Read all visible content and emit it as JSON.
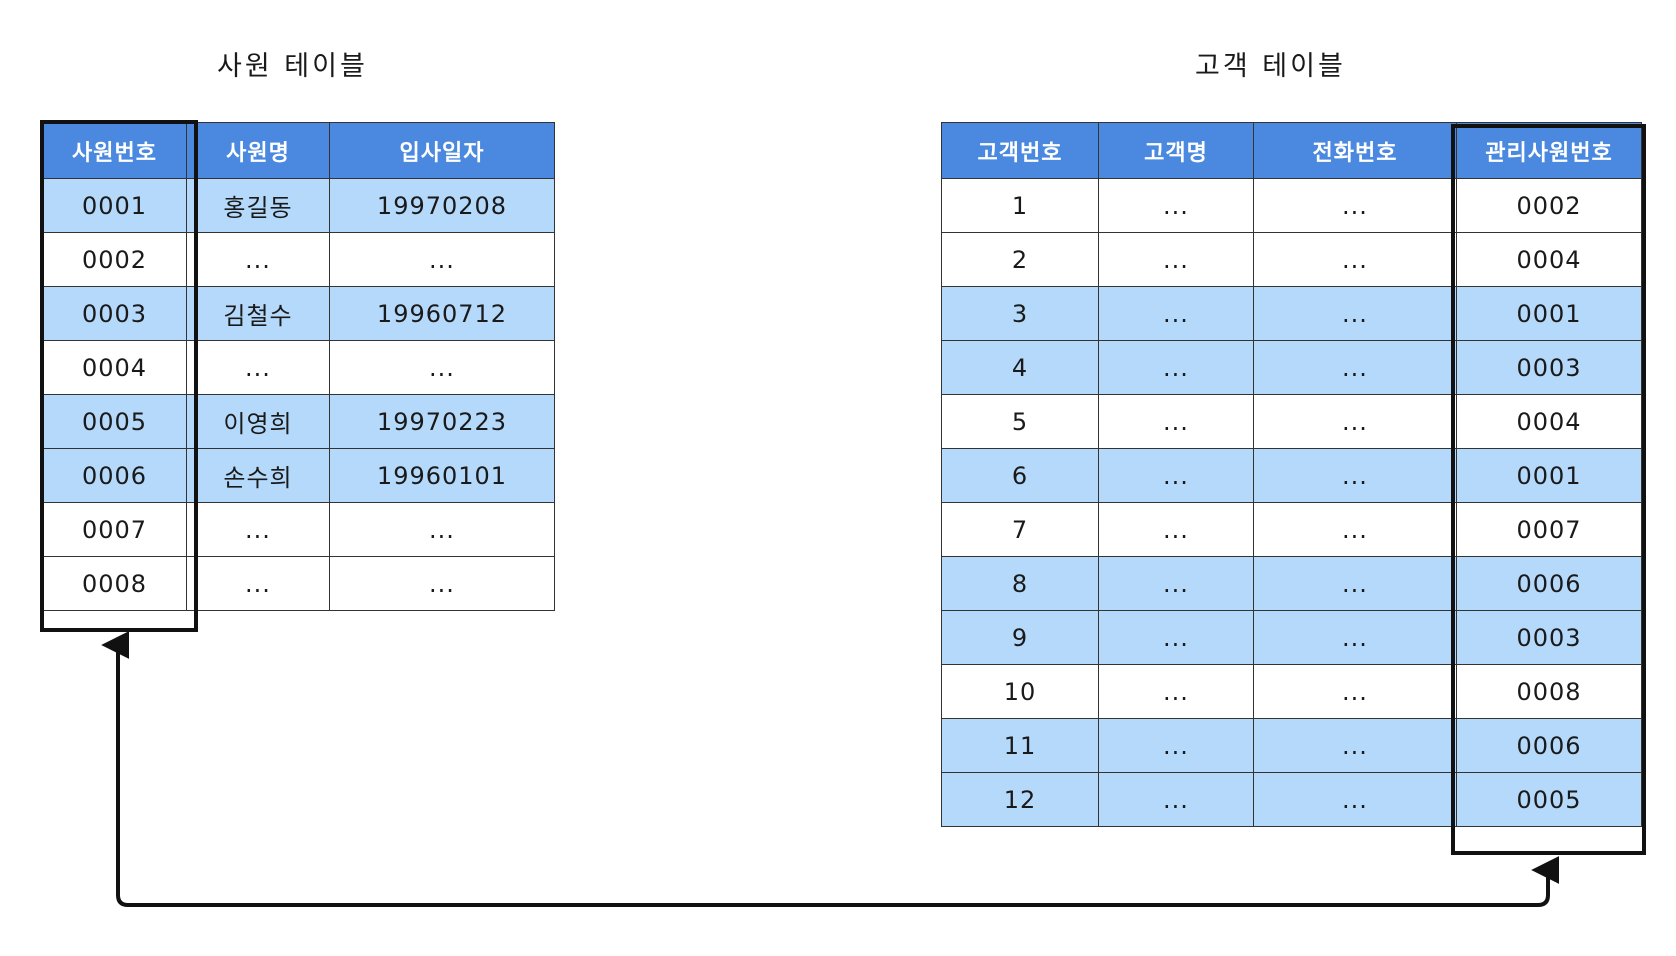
{
  "employee_table": {
    "title": "사원 테이블",
    "headers": [
      "사원번호",
      "사원명",
      "입사일자"
    ],
    "rows": [
      {
        "cells": [
          "0001",
          "홍길동",
          "19970208"
        ],
        "highlight": true
      },
      {
        "cells": [
          "0002",
          "...",
          "..."
        ],
        "highlight": false
      },
      {
        "cells": [
          "0003",
          "김철수",
          "19960712"
        ],
        "highlight": true
      },
      {
        "cells": [
          "0004",
          "...",
          "..."
        ],
        "highlight": false
      },
      {
        "cells": [
          "0005",
          "이영희",
          "19970223"
        ],
        "highlight": true
      },
      {
        "cells": [
          "0006",
          "손수희",
          "19960101"
        ],
        "highlight": true
      },
      {
        "cells": [
          "0007",
          "...",
          "..."
        ],
        "highlight": false
      },
      {
        "cells": [
          "0008",
          "...",
          "..."
        ],
        "highlight": false
      }
    ]
  },
  "customer_table": {
    "title": "고객 테이블",
    "headers": [
      "고객번호",
      "고객명",
      "전화번호",
      "관리사원번호"
    ],
    "rows": [
      {
        "cells": [
          "1",
          "...",
          "...",
          "0002"
        ],
        "highlight": false
      },
      {
        "cells": [
          "2",
          "...",
          "...",
          "0004"
        ],
        "highlight": false
      },
      {
        "cells": [
          "3",
          "...",
          "...",
          "0001"
        ],
        "highlight": true
      },
      {
        "cells": [
          "4",
          "...",
          "...",
          "0003"
        ],
        "highlight": true
      },
      {
        "cells": [
          "5",
          "...",
          "...",
          "0004"
        ],
        "highlight": false
      },
      {
        "cells": [
          "6",
          "...",
          "...",
          "0001"
        ],
        "highlight": true
      },
      {
        "cells": [
          "7",
          "...",
          "...",
          "0007"
        ],
        "highlight": false
      },
      {
        "cells": [
          "8",
          "...",
          "...",
          "0006"
        ],
        "highlight": true
      },
      {
        "cells": [
          "9",
          "...",
          "...",
          "0003"
        ],
        "highlight": true
      },
      {
        "cells": [
          "10",
          "...",
          "...",
          "0008"
        ],
        "highlight": false
      },
      {
        "cells": [
          "11",
          "...",
          "...",
          "0006"
        ],
        "highlight": true
      },
      {
        "cells": [
          "12",
          "...",
          "...",
          "0005"
        ],
        "highlight": true
      }
    ]
  },
  "colors": {
    "header": "#4a89df",
    "highlight_row": "#b5d9fb",
    "plain_row": "#ffffff",
    "key_border": "#111111"
  }
}
